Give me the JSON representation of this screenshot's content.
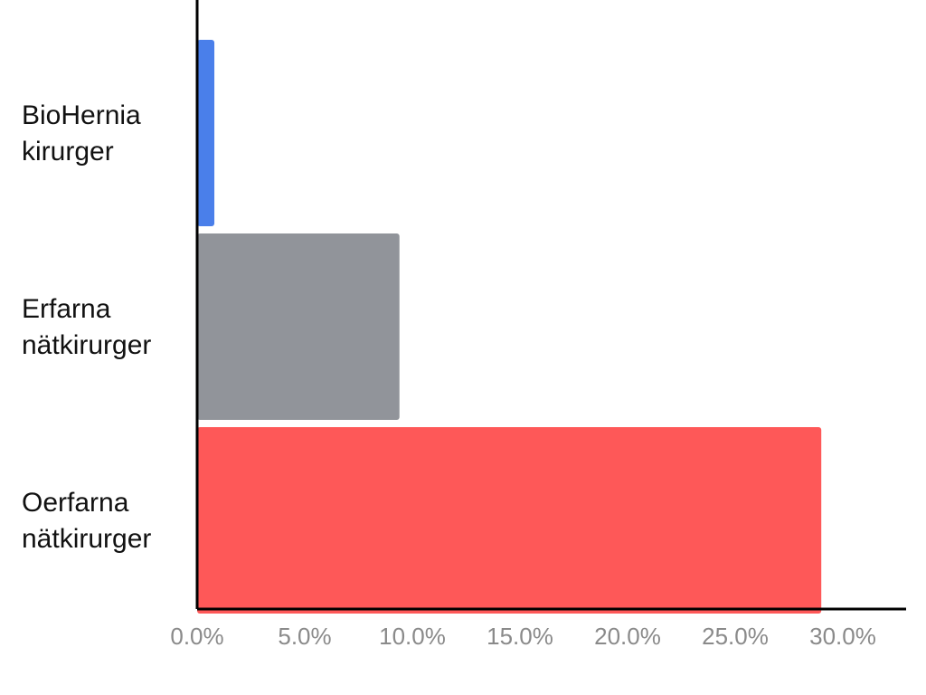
{
  "chart_data": {
    "type": "bar",
    "orientation": "horizontal",
    "categories": [
      [
        "BioHernia",
        "kirurger"
      ],
      [
        "Erfarna",
        "nätkirurger"
      ],
      [
        "Oerfarna",
        "nätkirurger"
      ]
    ],
    "values": [
      0.8,
      9.4,
      29.0
    ],
    "colors": [
      "#4a7fea",
      "#91949a",
      "#fe5858"
    ],
    "xlim": [
      0,
      30
    ],
    "xticks": [
      0,
      5,
      10,
      15,
      20,
      25,
      30
    ],
    "xtick_labels": [
      "0.0%",
      "5.0%",
      "10.0%",
      "15.0%",
      "20.0%",
      "25.0%",
      "30.0%"
    ],
    "grid": false,
    "legend": "none"
  }
}
